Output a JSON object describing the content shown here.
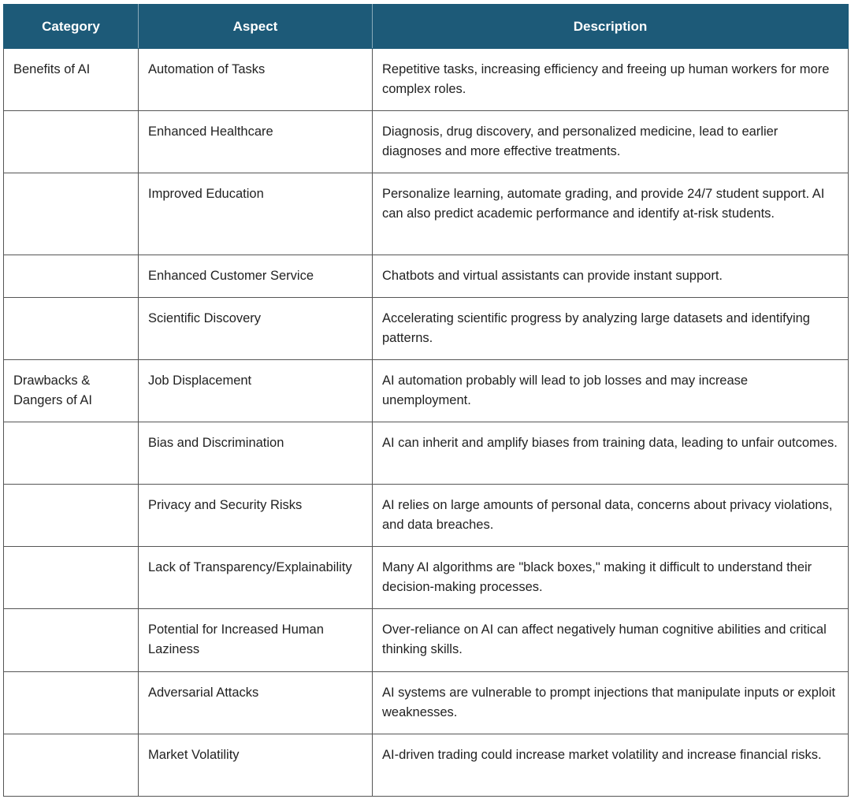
{
  "table": {
    "headers": [
      "Category",
      "Aspect",
      "Description"
    ],
    "rows": [
      {
        "category": "Benefits of AI",
        "aspect": "Automation of Tasks",
        "description": "Repetitive tasks, increasing efficiency and freeing up human workers for more complex roles."
      },
      {
        "aspect": "Enhanced Healthcare",
        "description": "Diagnosis, drug discovery, and personalized medicine, lead to earlier diagnoses and more effective treatments."
      },
      {
        "aspect": "Improved Education",
        "description": "Personalize learning, automate grading, and provide 24/7 student support. AI can also predict academic performance and identify at-risk students."
      },
      {
        "aspect": "Enhanced Customer Service",
        "description": "Chatbots and virtual assistants can provide instant support."
      },
      {
        "aspect": "Scientific Discovery",
        "description": "Accelerating scientific progress by analyzing large datasets and identifying patterns."
      },
      {
        "category": "Drawbacks & Dangers of AI",
        "aspect": "Job Displacement",
        "description": "AI automation probably will lead to job losses and may increase unemployment."
      },
      {
        "aspect": "Bias and Discrimination",
        "description": "AI can inherit and amplify biases from training data, leading to unfair outcomes."
      },
      {
        "aspect": "Privacy and Security Risks",
        "description": "AI relies on large amounts of personal data, concerns about privacy violations, and data breaches."
      },
      {
        "aspect": "Lack of Transparency/Explainability",
        "description": "Many AI algorithms are \"black boxes,\" making it difficult to understand their decision-making processes."
      },
      {
        "aspect": "Potential for Increased Human Laziness",
        "description": "Over-reliance on AI can affect negatively human cognitive abilities and critical thinking skills."
      },
      {
        "aspect": "Adversarial Attacks",
        "description": "AI systems are vulnerable to prompt injections that manipulate inputs or exploit weaknesses."
      },
      {
        "aspect": "Market Volatility",
        "description": "AI-driven trading could increase market volatility and increase financial risks."
      }
    ]
  }
}
